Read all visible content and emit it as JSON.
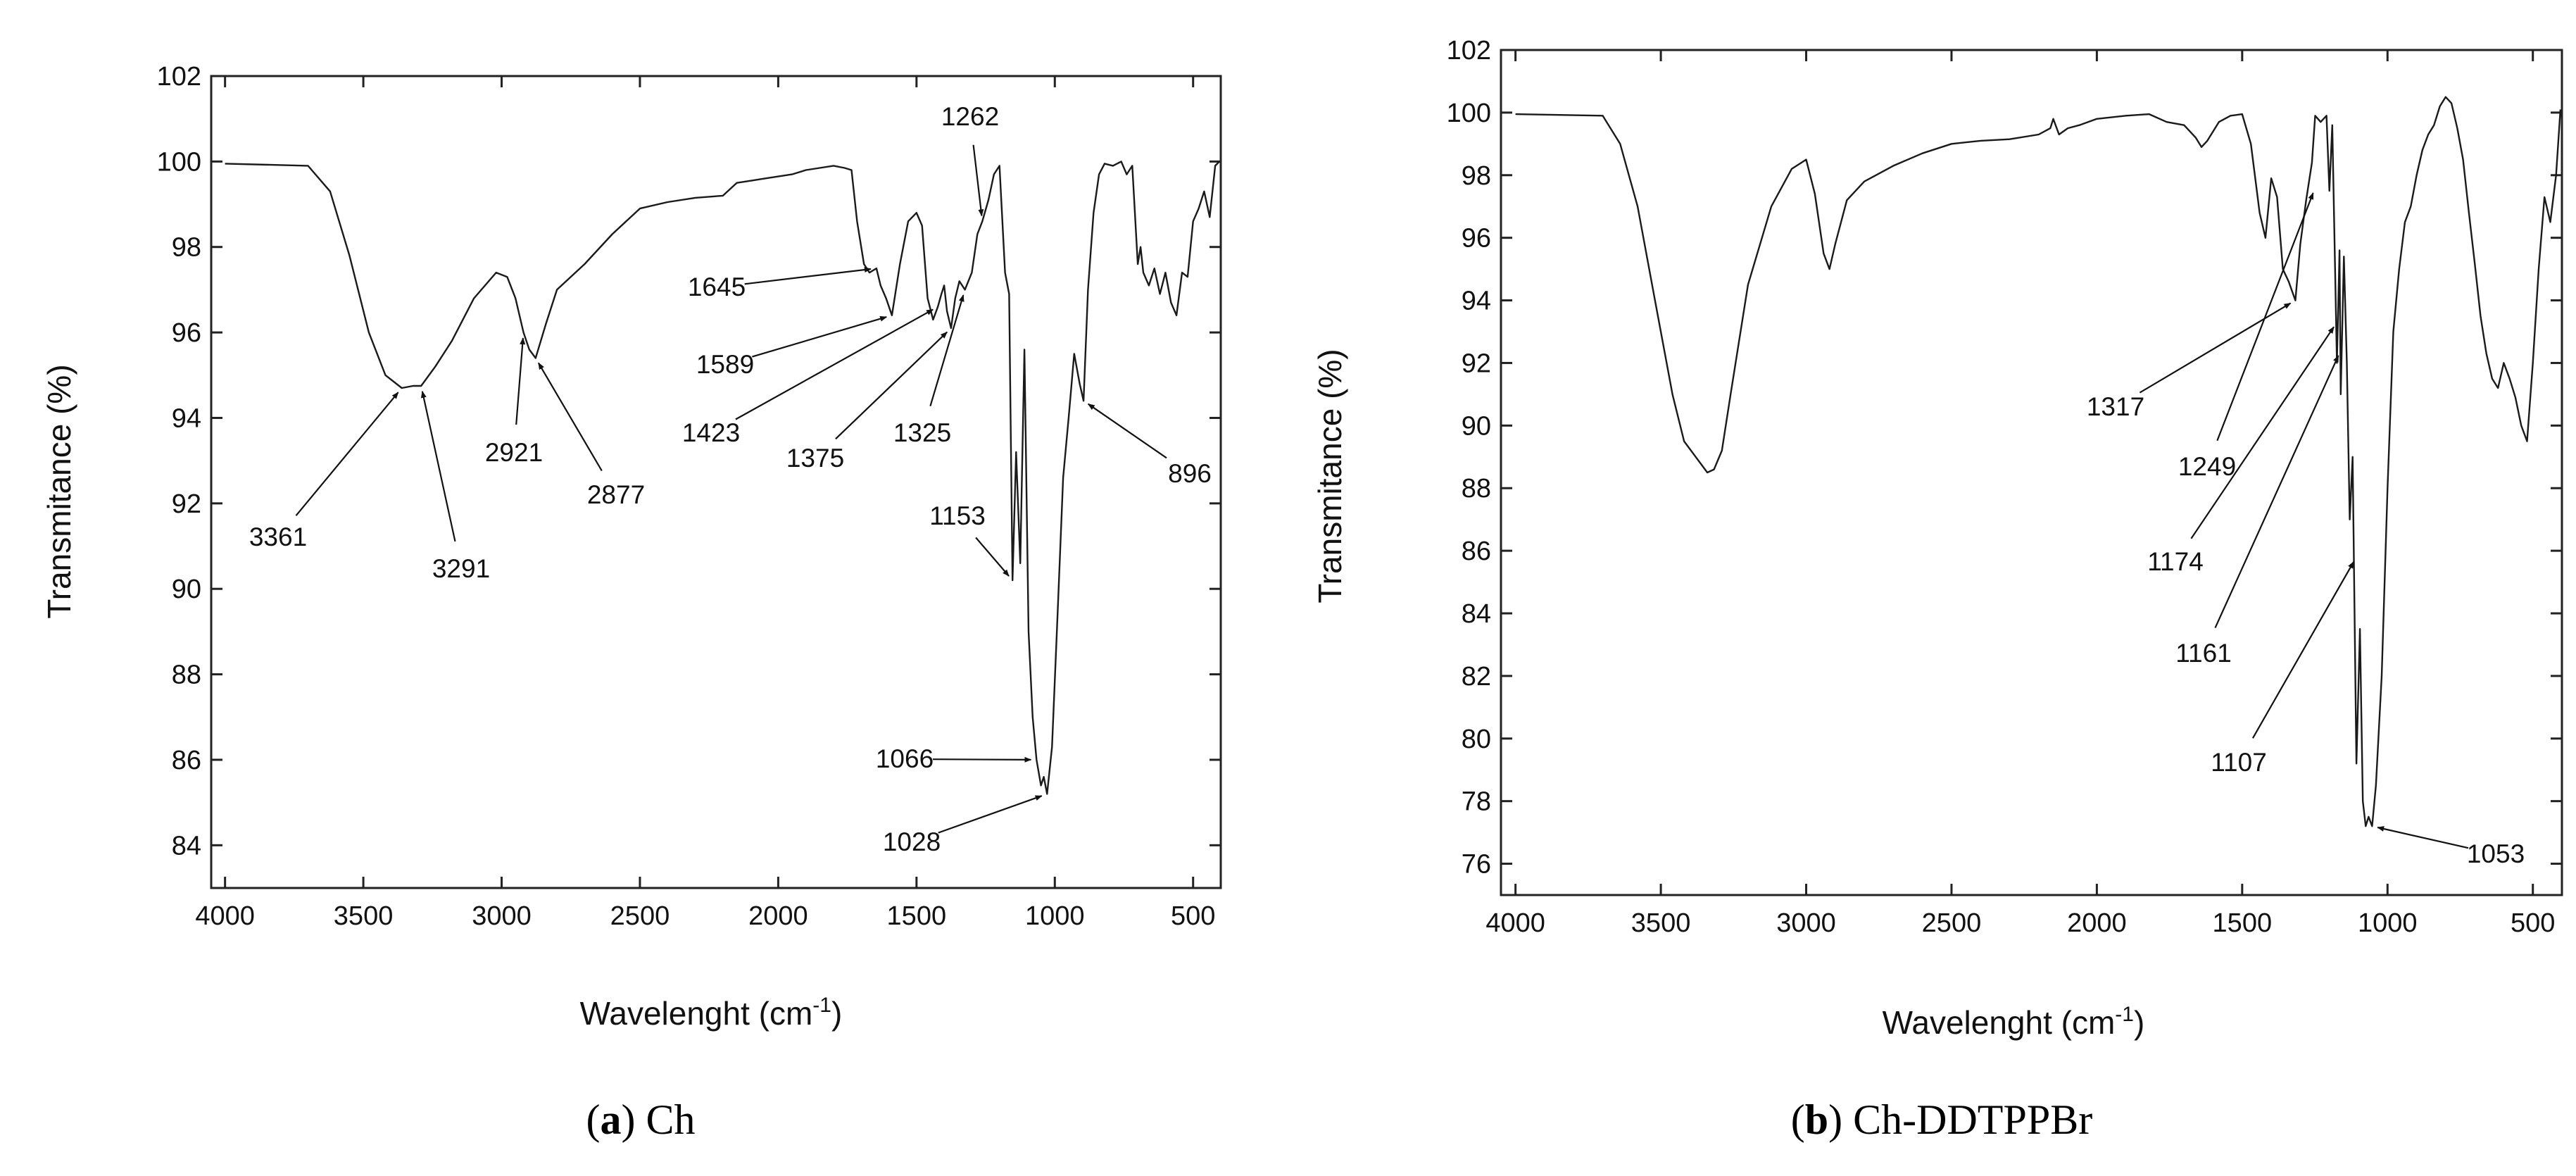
{
  "figure": {
    "caption_a_letter": "a",
    "caption_a_name": "Ch",
    "caption_b_letter": "b",
    "caption_b_name": "Ch-DDTPPBr"
  },
  "chart_data": [
    {
      "id": "a",
      "type": "line",
      "title": "",
      "xlabel": "Wavelenght (cm",
      "xlabel_superscript": "-1",
      "xlabel_suffix": ")",
      "ylabel": "Transmitance (%)",
      "xlim": [
        4050,
        400
      ],
      "ylim": [
        83,
        102
      ],
      "xticks": [
        4000,
        3500,
        3000,
        2500,
        2000,
        1500,
        1000,
        500
      ],
      "yticks": [
        84,
        86,
        88,
        90,
        92,
        94,
        96,
        98,
        100,
        102
      ],
      "series": [
        {
          "name": "Ch",
          "x": [
            4000,
            3700,
            3620,
            3550,
            3480,
            3420,
            3361,
            3320,
            3291,
            3240,
            3180,
            3100,
            3020,
            2980,
            2950,
            2921,
            2900,
            2877,
            2840,
            2800,
            2700,
            2600,
            2500,
            2400,
            2300,
            2200,
            2150,
            2100,
            2050,
            2000,
            1950,
            1900,
            1850,
            1800,
            1760,
            1735,
            1715,
            1690,
            1670,
            1645,
            1630,
            1610,
            1589,
            1560,
            1530,
            1500,
            1480,
            1460,
            1440,
            1423,
            1410,
            1400,
            1390,
            1375,
            1360,
            1345,
            1325,
            1300,
            1280,
            1262,
            1240,
            1220,
            1200,
            1180,
            1165,
            1153,
            1140,
            1125,
            1110,
            1095,
            1080,
            1066,
            1050,
            1040,
            1028,
            1010,
            990,
            970,
            950,
            930,
            910,
            896,
            880,
            860,
            840,
            820,
            790,
            760,
            740,
            720,
            700,
            690,
            680,
            660,
            640,
            620,
            600,
            580,
            560,
            540,
            520,
            500,
            480,
            460,
            440,
            420,
            405
          ],
          "y": [
            99.95,
            99.9,
            99.3,
            97.8,
            96.0,
            95.0,
            94.7,
            94.75,
            94.75,
            95.2,
            95.8,
            96.8,
            97.4,
            97.3,
            96.8,
            96.0,
            95.6,
            95.4,
            96.2,
            97.0,
            97.6,
            98.3,
            98.9,
            99.05,
            99.15,
            99.2,
            99.5,
            99.55,
            99.6,
            99.65,
            99.7,
            99.8,
            99.85,
            99.9,
            99.85,
            99.8,
            98.6,
            97.6,
            97.4,
            97.5,
            97.1,
            96.8,
            96.4,
            97.6,
            98.6,
            98.8,
            98.5,
            96.8,
            96.3,
            96.6,
            96.9,
            97.1,
            96.5,
            96.1,
            96.8,
            97.2,
            97.0,
            97.4,
            98.3,
            98.6,
            99.1,
            99.7,
            99.9,
            97.4,
            96.9,
            90.2,
            93.2,
            90.6,
            95.6,
            89.0,
            87.0,
            86.0,
            85.4,
            85.6,
            85.2,
            86.3,
            89.4,
            92.6,
            94.0,
            95.5,
            94.8,
            94.4,
            97.0,
            98.8,
            99.7,
            99.95,
            99.9,
            100.0,
            99.7,
            99.9,
            97.6,
            98.0,
            97.4,
            97.1,
            97.5,
            96.9,
            97.4,
            96.7,
            96.4,
            97.4,
            97.3,
            98.6,
            98.9,
            99.3,
            98.7,
            99.9,
            100.0
          ]
        }
      ],
      "annotations": [
        {
          "label": "3361",
          "x": 3361,
          "y": 94.7
        },
        {
          "label": "3291",
          "x": 3291,
          "y": 94.75
        },
        {
          "label": "2921",
          "x": 2921,
          "y": 96.0
        },
        {
          "label": "2877",
          "x": 2877,
          "y": 95.4
        },
        {
          "label": "1645",
          "x": 1645,
          "y": 97.5
        },
        {
          "label": "1589",
          "x": 1589,
          "y": 96.4
        },
        {
          "label": "1423",
          "x": 1423,
          "y": 96.6
        },
        {
          "label": "1375",
          "x": 1375,
          "y": 96.1
        },
        {
          "label": "1325",
          "x": 1325,
          "y": 97.0
        },
        {
          "label": "1262",
          "x": 1262,
          "y": 98.6
        },
        {
          "label": "1153",
          "x": 1153,
          "y": 90.2
        },
        {
          "label": "1066",
          "x": 1066,
          "y": 86.0
        },
        {
          "label": "1028",
          "x": 1028,
          "y": 85.2
        },
        {
          "label": "896",
          "x": 896,
          "y": 94.4
        }
      ]
    },
    {
      "id": "b",
      "type": "line",
      "title": "",
      "xlabel": "Wavelenght (cm",
      "xlabel_superscript": "-1",
      "xlabel_suffix": ")",
      "ylabel": "Transmitance (%)",
      "xlim": [
        4050,
        400
      ],
      "ylim": [
        75,
        102
      ],
      "xticks": [
        4000,
        3500,
        3000,
        2500,
        2000,
        1500,
        1000,
        500
      ],
      "yticks": [
        76,
        78,
        80,
        82,
        84,
        86,
        88,
        90,
        92,
        94,
        96,
        98,
        100,
        102
      ],
      "series": [
        {
          "name": "Ch-DDTPPBr",
          "x": [
            4000,
            3700,
            3640,
            3580,
            3520,
            3460,
            3420,
            3380,
            3340,
            3317,
            3290,
            3260,
            3200,
            3120,
            3050,
            3000,
            2970,
            2940,
            2920,
            2900,
            2860,
            2800,
            2700,
            2600,
            2500,
            2400,
            2300,
            2200,
            2160,
            2150,
            2130,
            2100,
            2060,
            2000,
            1950,
            1900,
            1820,
            1760,
            1700,
            1660,
            1640,
            1620,
            1580,
            1540,
            1500,
            1470,
            1440,
            1420,
            1400,
            1380,
            1360,
            1340,
            1317,
            1300,
            1280,
            1260,
            1249,
            1230,
            1210,
            1200,
            1190,
            1174,
            1165,
            1161,
            1150,
            1140,
            1130,
            1120,
            1107,
            1095,
            1085,
            1075,
            1065,
            1053,
            1040,
            1020,
            1000,
            980,
            960,
            940,
            920,
            900,
            880,
            860,
            840,
            820,
            800,
            780,
            760,
            740,
            720,
            700,
            680,
            660,
            640,
            620,
            600,
            580,
            560,
            540,
            520,
            500,
            480,
            460,
            440,
            420,
            405
          ],
          "y": [
            99.95,
            99.9,
            99.0,
            97.0,
            94.0,
            91.0,
            89.5,
            89.0,
            88.5,
            88.6,
            89.2,
            91.0,
            94.5,
            97.0,
            98.2,
            98.5,
            97.4,
            95.5,
            95.0,
            95.8,
            97.2,
            97.8,
            98.3,
            98.7,
            99.0,
            99.1,
            99.15,
            99.3,
            99.5,
            99.8,
            99.3,
            99.5,
            99.6,
            99.8,
            99.85,
            99.9,
            99.95,
            99.7,
            99.6,
            99.2,
            98.9,
            99.1,
            99.7,
            99.9,
            99.95,
            99.0,
            96.8,
            96.0,
            97.9,
            97.3,
            95.0,
            94.6,
            94.0,
            95.8,
            97.2,
            98.4,
            99.9,
            99.7,
            99.9,
            97.5,
            99.6,
            92.0,
            95.6,
            91.0,
            95.4,
            92.0,
            87.0,
            89.0,
            79.2,
            83.5,
            78.0,
            77.2,
            77.5,
            77.2,
            78.5,
            82.0,
            88.0,
            93.0,
            95.0,
            96.5,
            97.0,
            98.0,
            98.8,
            99.3,
            99.6,
            100.2,
            100.5,
            100.3,
            99.5,
            98.5,
            96.8,
            95.2,
            93.5,
            92.3,
            91.5,
            91.2,
            92.0,
            91.5,
            90.9,
            90.0,
            89.5,
            92.0,
            95.0,
            97.3,
            96.5,
            98.0,
            100.1
          ]
        }
      ],
      "annotations": [
        {
          "label": "1317",
          "x": 1317,
          "y": 94.0
        },
        {
          "label": "1249",
          "x": 1249,
          "y": 97.6
        },
        {
          "label": "1174",
          "x": 1174,
          "y": 93.3
        },
        {
          "label": "1161",
          "x": 1161,
          "y": 92.4
        },
        {
          "label": "1107",
          "x": 1107,
          "y": 85.8
        },
        {
          "label": "1053",
          "x": 1053,
          "y": 77.2
        }
      ]
    }
  ]
}
